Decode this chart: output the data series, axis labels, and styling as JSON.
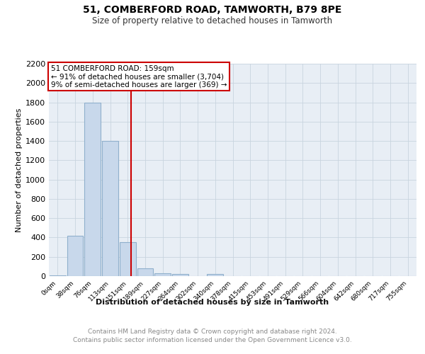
{
  "title": "51, COMBERFORD ROAD, TAMWORTH, B79 8PE",
  "subtitle": "Size of property relative to detached houses in Tamworth",
  "xlabel": "Distribution of detached houses by size in Tamworth",
  "ylabel": "Number of detached properties",
  "footer_line1": "Contains HM Land Registry data © Crown copyright and database right 2024.",
  "footer_line2": "Contains public sector information licensed under the Open Government Licence v3.0.",
  "categories": [
    "0sqm",
    "38sqm",
    "76sqm",
    "113sqm",
    "151sqm",
    "189sqm",
    "227sqm",
    "264sqm",
    "302sqm",
    "340sqm",
    "378sqm",
    "415sqm",
    "453sqm",
    "491sqm",
    "529sqm",
    "566sqm",
    "604sqm",
    "642sqm",
    "680sqm",
    "717sqm",
    "755sqm"
  ],
  "bar_values": [
    10,
    420,
    1800,
    1400,
    350,
    80,
    30,
    20,
    0,
    20,
    0,
    0,
    0,
    0,
    0,
    0,
    0,
    0,
    0,
    0,
    0
  ],
  "bar_color": "#c8d8eb",
  "bar_edgecolor": "#90b0cc",
  "bar_linewidth": 0.8,
  "vline_color": "#cc0000",
  "vline_linewidth": 1.5,
  "vline_pos": 4.21,
  "annotation_title": "51 COMBERFORD ROAD: 159sqm",
  "annotation_line1": "← 91% of detached houses are smaller (3,704)",
  "annotation_line2": "9% of semi-detached houses are larger (369) →",
  "annotation_box_color": "#cc0000",
  "annotation_fill": "#ffffff",
  "ylim": [
    0,
    2200
  ],
  "yticks": [
    0,
    200,
    400,
    600,
    800,
    1000,
    1200,
    1400,
    1600,
    1800,
    2000,
    2200
  ],
  "grid_color": "#c8d4df",
  "background_color": "#e8eef5",
  "bar_width": 0.92,
  "figsize": [
    6.0,
    5.0
  ],
  "dpi": 100,
  "title_fontsize": 10,
  "subtitle_fontsize": 8.5,
  "ylabel_fontsize": 8,
  "xlabel_fontsize": 8,
  "footer_fontsize": 6.5,
  "ytick_fontsize": 8,
  "xtick_fontsize": 6.5
}
